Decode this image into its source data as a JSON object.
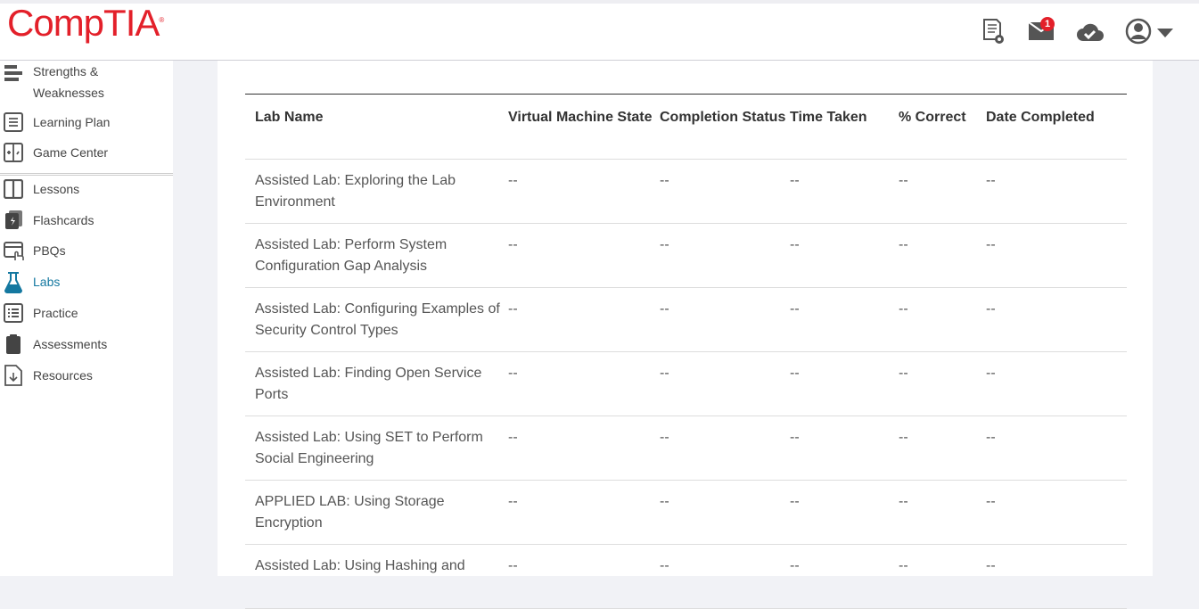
{
  "brand": {
    "logo": "CompTIA",
    "color": "#e3202a"
  },
  "header": {
    "icons": [
      "certificate-icon",
      "mail-icon",
      "cloud-check-icon",
      "user-icon",
      "caret-down-icon"
    ],
    "mail_badge": "1"
  },
  "sidebar": {
    "active_color": "#1478a0",
    "items": [
      {
        "label": "Strengths & Weaknesses",
        "icon": "strengths-icon"
      },
      {
        "label": "Learning Plan",
        "icon": "learning-plan-icon"
      },
      {
        "label": "Game Center",
        "icon": "game-center-icon"
      },
      {
        "label": "Lessons",
        "icon": "book-icon"
      },
      {
        "label": "Flashcards",
        "icon": "flashcards-icon"
      },
      {
        "label": "PBQs",
        "icon": "pbq-icon"
      },
      {
        "label": "Labs",
        "icon": "flask-icon",
        "active": true
      },
      {
        "label": "Practice",
        "icon": "list-icon"
      },
      {
        "label": "Assessments",
        "icon": "clipboard-icon"
      },
      {
        "label": "Resources",
        "icon": "download-file-icon"
      }
    ]
  },
  "table": {
    "headers": [
      "Lab Name",
      "Virtual Machine State",
      "Completion Status",
      "Time Taken",
      "% Correct",
      "Date Completed"
    ],
    "rows": [
      [
        "Assisted Lab: Exploring the Lab Environment",
        "--",
        "--",
        "--",
        "--",
        "--"
      ],
      [
        "Assisted Lab: Perform System Configuration Gap Analysis",
        "--",
        "--",
        "--",
        "--",
        "--"
      ],
      [
        "Assisted Lab: Configuring Examples of Security Control Types",
        "--",
        "--",
        "--",
        "--",
        "--"
      ],
      [
        "Assisted Lab: Finding Open Service Ports",
        "--",
        "--",
        "--",
        "--",
        "--"
      ],
      [
        "Assisted Lab: Using SET to Perform Social Engineering",
        "--",
        "--",
        "--",
        "--",
        "--"
      ],
      [
        "APPLIED LAB: Using Storage Encryption",
        "--",
        "--",
        "--",
        "--",
        "--"
      ],
      [
        "Assisted Lab: Using Hashing and",
        "--",
        "--",
        "--",
        "--",
        "--"
      ]
    ]
  }
}
